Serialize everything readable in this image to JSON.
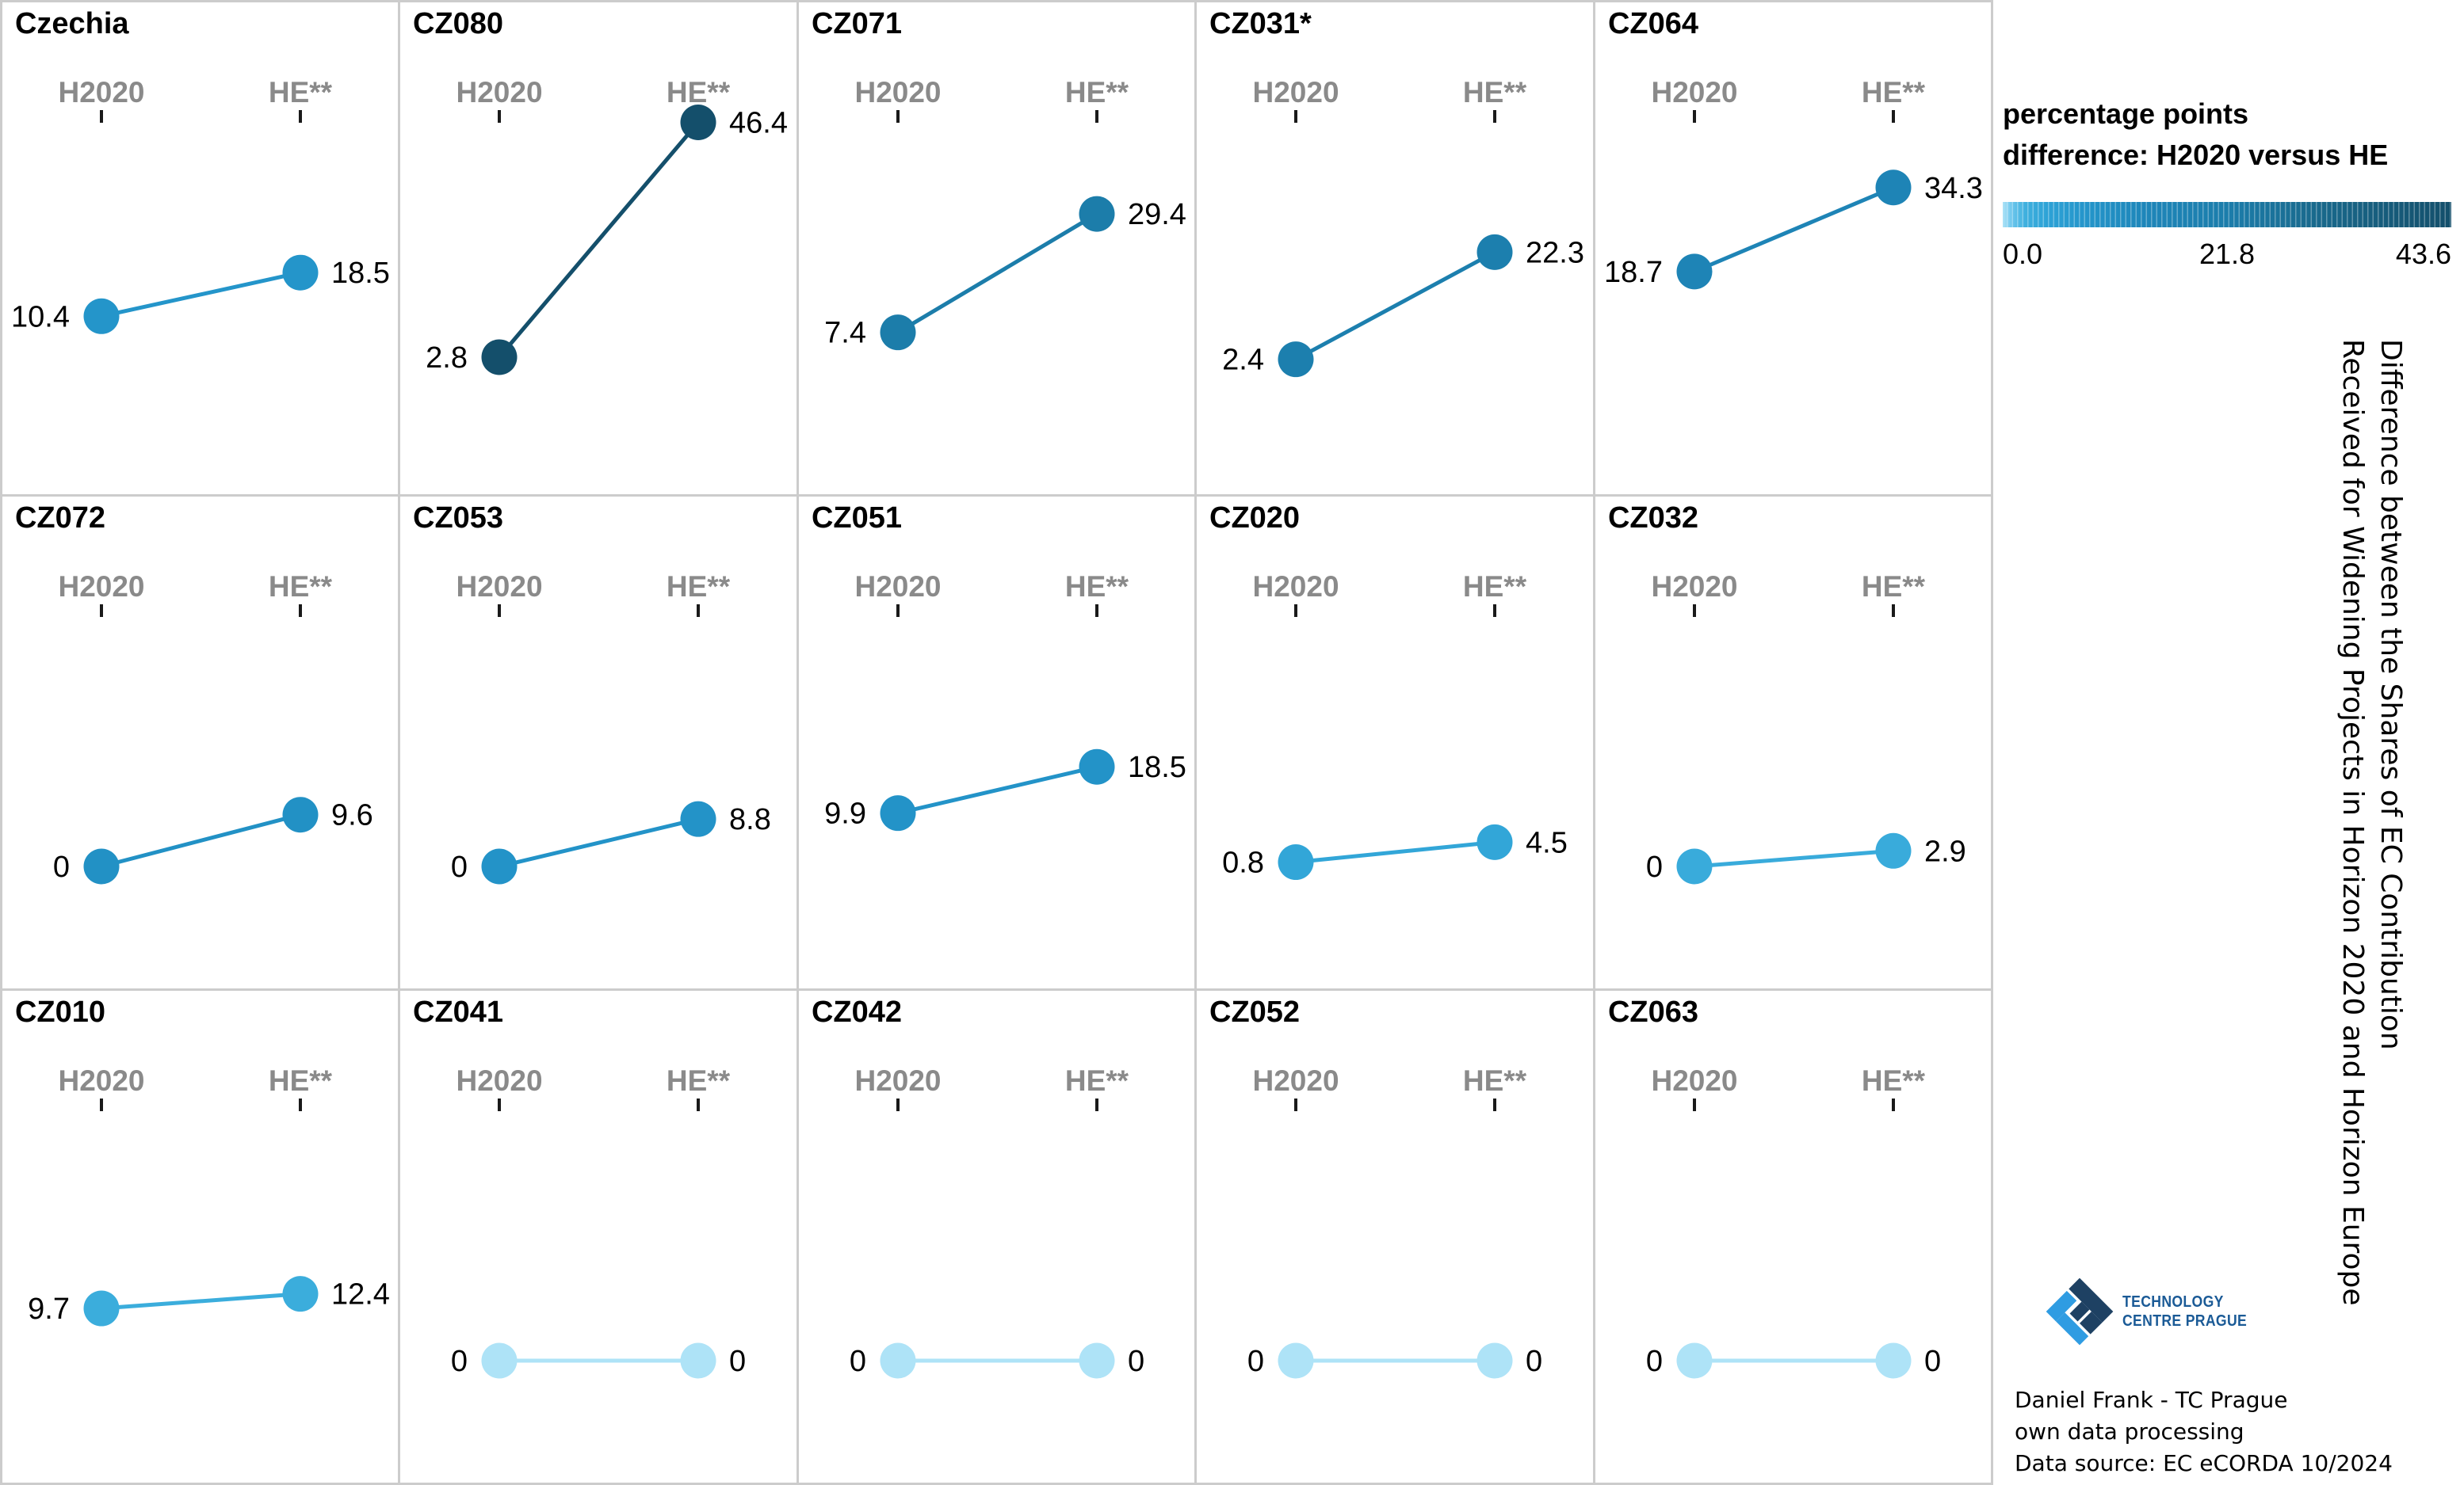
{
  "chart_data": {
    "type": "slope_facets",
    "x_categories": [
      "H2020",
      "HE**"
    ],
    "panels": [
      {
        "title": "Czechia",
        "h2020": 10.4,
        "he": 18.5
      },
      {
        "title": "CZ080",
        "h2020": 2.8,
        "he": 46.4
      },
      {
        "title": "CZ071",
        "h2020": 7.4,
        "he": 29.4
      },
      {
        "title": "CZ031*",
        "h2020": 2.4,
        "he": 22.3
      },
      {
        "title": "CZ064",
        "h2020": 18.7,
        "he": 34.3
      },
      {
        "title": "CZ072",
        "h2020": 0,
        "he": 9.6
      },
      {
        "title": "CZ053",
        "h2020": 0,
        "he": 8.8
      },
      {
        "title": "CZ051",
        "h2020": 9.9,
        "he": 18.5
      },
      {
        "title": "CZ020",
        "h2020": 0.8,
        "he": 4.5
      },
      {
        "title": "CZ032",
        "h2020": 0,
        "he": 2.9
      },
      {
        "title": "CZ010",
        "h2020": 9.7,
        "he": 12.4
      },
      {
        "title": "CZ041",
        "h2020": 0,
        "he": 0
      },
      {
        "title": "CZ042",
        "h2020": 0,
        "he": 0
      },
      {
        "title": "CZ052",
        "h2020": 0,
        "he": 0
      },
      {
        "title": "CZ063",
        "h2020": 0,
        "he": 0
      }
    ],
    "color_scale": {
      "min": 0.0,
      "mid": 21.8,
      "max": 43.6,
      "stops": [
        {
          "t": 0,
          "color": "#aee3f7"
        },
        {
          "t": 0.02,
          "color": "#6cc6ec"
        },
        {
          "t": 0.05,
          "color": "#3fb0de"
        },
        {
          "t": 0.1,
          "color": "#2da2d6"
        },
        {
          "t": 0.2,
          "color": "#2393c8"
        },
        {
          "t": 0.32,
          "color": "#1e86b9"
        },
        {
          "t": 0.5,
          "color": "#1c7dab"
        },
        {
          "t": 0.7,
          "color": "#19698c"
        },
        {
          "t": 1,
          "color": "#144f6b"
        }
      ]
    }
  },
  "legend": {
    "title_line1": "percentage points",
    "title_line2": "difference: H2020 versus HE",
    "label_min": "0.0",
    "label_mid": "21.8",
    "label_max": "43.6"
  },
  "caption": {
    "line1": "Difference between the Shares of EC Contribution",
    "line2": "Received for Widening Projects in Horizon 2020 and Horizon Europe"
  },
  "attribution": {
    "line1": "Daniel Frank - TC Prague",
    "line2": "own data processing",
    "line3": "Data source: EC eCORDA 10/2024"
  },
  "logo": {
    "line1": "TECHNOLOGY",
    "line2": "CENTRE PRAGUE",
    "dark_color": "#1e4163",
    "light_color": "#2f9ce2"
  }
}
